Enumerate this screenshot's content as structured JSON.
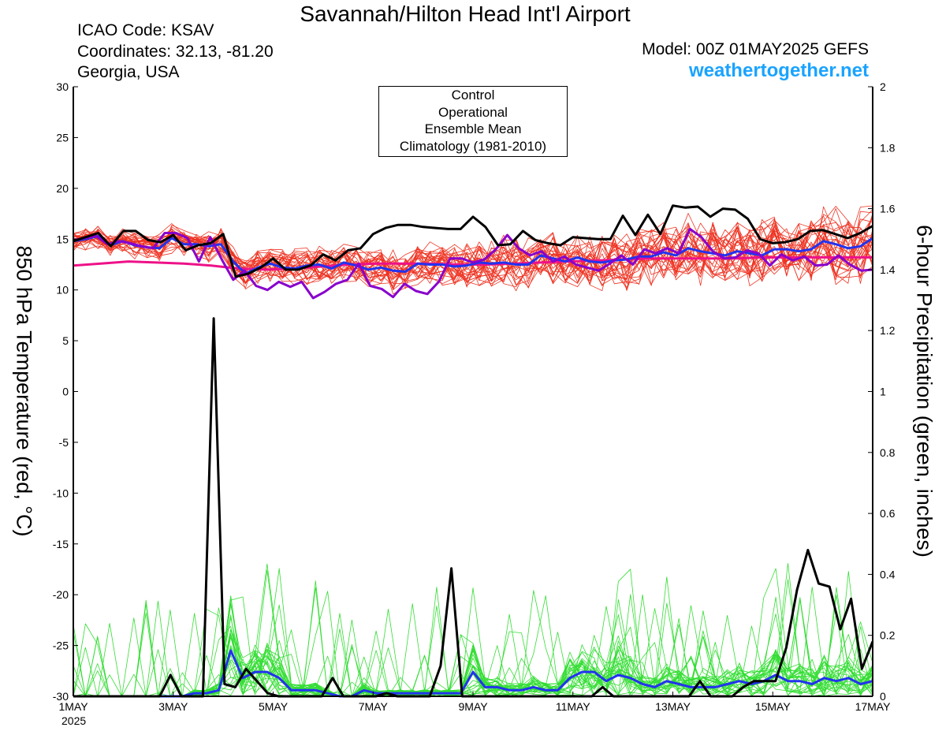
{
  "header": {
    "title": "Savannah/Hilton Head Int'l Airport",
    "icao": "ICAO Code: KSAV",
    "coordinates": "Coordinates: 32.13, -81.20",
    "region": "Georgia, USA",
    "model": "Model: 00Z 01MAY2025 GEFS",
    "site": "weathertogether.net"
  },
  "chart_data": {
    "type": "line",
    "title": "Savannah/Hilton Head Int'l Airport",
    "ylabel_left": "850 hPa Temperature (red, °C)",
    "ylabel_right": "6-hour Precipitation (green, inches)",
    "y_left_range": [
      -30,
      30
    ],
    "y_left_ticks": [
      "30",
      "25",
      "20",
      "15",
      "10",
      "5",
      "0",
      "-5",
      "-10",
      "-15",
      "-20",
      "-25",
      "-30"
    ],
    "y_right_range": [
      0,
      2
    ],
    "y_right_ticks": [
      "2",
      "1.8",
      "1.6",
      "1.4",
      "1.2",
      "1",
      "0.8",
      "0.6",
      "0.4",
      "0.2",
      "0"
    ],
    "x_range_days": [
      0,
      16
    ],
    "x_ticks": [
      {
        "d": 0,
        "label": "1MAY"
      },
      {
        "d": 2,
        "label": "3MAY"
      },
      {
        "d": 4,
        "label": "5MAY"
      },
      {
        "d": 6,
        "label": "7MAY"
      },
      {
        "d": 8,
        "label": "9MAY"
      },
      {
        "d": 10,
        "label": "11MAY"
      },
      {
        "d": 12,
        "label": "13MAY"
      },
      {
        "d": 14,
        "label": "15MAY"
      },
      {
        "d": 16,
        "label": "17MAY"
      }
    ],
    "year_label": "2025",
    "legend": [
      {
        "name": "Control",
        "color": "#000000"
      },
      {
        "name": "Operational",
        "color": "#8800cc"
      },
      {
        "name": "Ensemble Mean",
        "color": "#2233ee"
      },
      {
        "name": "Climatology (1981-2010)",
        "color": "#ee1188"
      }
    ],
    "colors": {
      "members_temp": "#ee3322",
      "members_precip": "#33dd33"
    },
    "series_temp": {
      "control": [
        14.8,
        15.2,
        15.6,
        14.3,
        15.8,
        15.8,
        14.9,
        14.7,
        15.4,
        13.9,
        14.4,
        14.6,
        15.5,
        11.3,
        11.6,
        12.2,
        13.1,
        12.0,
        12.0,
        12.4,
        13.5,
        12.9,
        13.9,
        14.1,
        15.5,
        16.1,
        16.4,
        16.4,
        16.2,
        16.1,
        16.0,
        16.0,
        17.2,
        16.2,
        14.4,
        14.5,
        15.8,
        14.9,
        14.6,
        14.4,
        15.2,
        15.1,
        15.0,
        15.0,
        17.3,
        15.4,
        17.4,
        15.5,
        18.3,
        18.1,
        18.2,
        17.2,
        18.0,
        17.9,
        17.0,
        15.0,
        14.6,
        14.7,
        15.0,
        15.8,
        15.9,
        15.5,
        15.1,
        15.6,
        16.3
      ],
      "operational": [
        14.9,
        15.1,
        15.3,
        14.5,
        14.8,
        14.6,
        14.3,
        14.1,
        15.6,
        15.6,
        15.1,
        12.8,
        15.2,
        13.0,
        11.0,
        11.9,
        10.4,
        10.0,
        10.8,
        10.3,
        10.8,
        9.2,
        9.8,
        10.6,
        11.0,
        12.6,
        10.4,
        10.1,
        9.3,
        10.6,
        9.9,
        9.6,
        10.8,
        13.1,
        13.1,
        12.7,
        13.0,
        14.0,
        15.4,
        14.1,
        13.4,
        13.8,
        12.8,
        13.3,
        12.5,
        12.2,
        11.9,
        12.6,
        13.4,
        12.5,
        14.0,
        13.6,
        14.1,
        13.6,
        16.0,
        15.2,
        13.8,
        13.1,
        13.2,
        13.9,
        13.6,
        12.4,
        13.5,
        12.9,
        13.3,
        12.4,
        12.5,
        13.4,
        12.5,
        11.9,
        12.0
      ],
      "mean": [
        14.8,
        15.0,
        15.3,
        14.4,
        14.8,
        14.4,
        14.2,
        14.1,
        15.1,
        14.5,
        14.5,
        14.3,
        14.5,
        12.8,
        11.6,
        12.2,
        12.6,
        12.2,
        12.1,
        12.4,
        12.5,
        12.1,
        12.7,
        12.4,
        12.0,
        12.2,
        11.9,
        11.8,
        12.6,
        12.5,
        12.5,
        12.3,
        12.4,
        12.7,
        12.6,
        12.7,
        12.5,
        12.5,
        13.4,
        13.1,
        12.8,
        13.2,
        12.8,
        12.7,
        12.9,
        13.0,
        13.3,
        13.3,
        13.7,
        13.4,
        14.1,
        13.8,
        13.6,
        13.4,
        13.8,
        13.6,
        13.4,
        14.0,
        14.0,
        13.8,
        14.0,
        14.8,
        14.5,
        14.1,
        14.3,
        15.1
      ],
      "climatology": [
        12.4,
        12.6,
        12.8,
        12.7,
        12.6,
        12.4,
        12.1,
        12.0,
        12.1,
        12.3,
        12.5,
        12.6,
        12.6,
        12.6,
        12.5,
        12.5,
        12.6,
        12.7,
        12.8,
        12.9,
        13.0,
        13.1,
        13.1,
        13.1,
        13.1,
        13.2,
        13.2,
        13.2,
        13.2,
        13.2
      ]
    },
    "series_precip": {
      "control": [
        0,
        0,
        0,
        0,
        0,
        0,
        0,
        0,
        0,
        0.07,
        0,
        0,
        0,
        1.24,
        0.04,
        0.03,
        0.09,
        0.05,
        0.01,
        0,
        0,
        0,
        0,
        0,
        0.06,
        0,
        0,
        0,
        0,
        0.01,
        0,
        0,
        0,
        0,
        0.1,
        0.42,
        0,
        0,
        0,
        0,
        0,
        0,
        0,
        0,
        0,
        0,
        0,
        0,
        0,
        0.03,
        0,
        0,
        0,
        0,
        0,
        0,
        0,
        0,
        0.05,
        0,
        0,
        0,
        0.03,
        0.05,
        0.05,
        0.05,
        0.16,
        0.35,
        0.48,
        0.37,
        0.36,
        0.22,
        0.32,
        0.09,
        0.18
      ],
      "mean": [
        0,
        0,
        0,
        0,
        0,
        0,
        0,
        0,
        0,
        0,
        0.01,
        0.01,
        0.02,
        0.15,
        0.06,
        0.08,
        0.08,
        0.06,
        0.02,
        0.02,
        0.02,
        0.01,
        0,
        0,
        0.02,
        0.01,
        0.01,
        0.01,
        0.01,
        0.01,
        0.01,
        0.01,
        0.01,
        0.08,
        0.03,
        0.03,
        0.02,
        0.02,
        0.03,
        0.02,
        0.02,
        0.06,
        0.08,
        0.08,
        0.05,
        0.07,
        0.06,
        0.04,
        0.03,
        0.05,
        0.04,
        0.03,
        0.03,
        0.03,
        0.04,
        0.05,
        0.04,
        0.05,
        0.07,
        0.05,
        0.05,
        0.04,
        0.06,
        0.05,
        0.06,
        0.04,
        0.05
      ]
    }
  }
}
